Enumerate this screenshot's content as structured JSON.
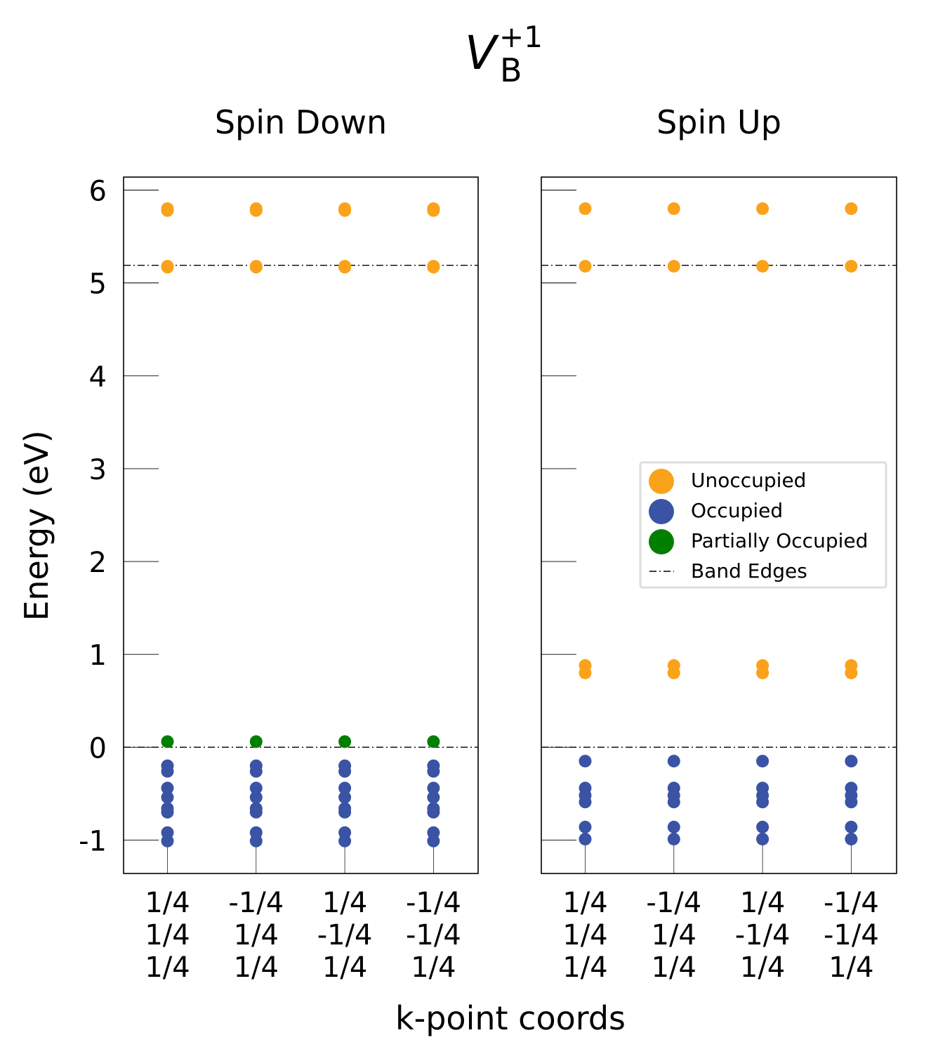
{
  "title": {
    "main": "V",
    "superscript": "+1",
    "subscript": "B"
  },
  "xlabel": "k-point coords",
  "ylabel": "Energy (eV)",
  "colors": {
    "unoccupied": "#faa21a",
    "occupied": "#3a53a4",
    "partially_occupied": "#007f00",
    "band_edges": "#000000"
  },
  "chart_data": [
    {
      "type": "scatter",
      "title": "Spin Down",
      "ylabel": "Energy (eV)",
      "ylim": [
        -1.36,
        6.14
      ],
      "yticks": [
        -1,
        0,
        1,
        2,
        3,
        4,
        5,
        6
      ],
      "ytick_labels": [
        "-1",
        "0",
        "1",
        "2",
        "3",
        "4",
        "5",
        "6"
      ],
      "categories": [
        [
          "1/4",
          "1/4",
          "1/4"
        ],
        [
          "-1/4",
          "1/4",
          "1/4"
        ],
        [
          "1/4",
          "-1/4",
          "1/4"
        ],
        [
          "-1/4",
          "-1/4",
          "1/4"
        ]
      ],
      "band_edges": [
        0.0,
        5.19
      ],
      "series": [
        {
          "name": "Unoccupied",
          "color": "#faa21a",
          "levels": [
            5.8,
            5.78,
            5.18,
            5.17
          ]
        },
        {
          "name": "Occupied",
          "color": "#3a53a4",
          "levels": [
            -0.2,
            -0.26,
            -0.44,
            -0.54,
            -0.66,
            -0.7,
            -0.92,
            -1.01
          ]
        },
        {
          "name": "Partially Occupied",
          "color": "#007f00",
          "levels": [
            0.06
          ]
        }
      ]
    },
    {
      "type": "scatter",
      "title": "Spin Up",
      "ylim": [
        -1.36,
        6.14
      ],
      "yticks": [
        -1,
        0,
        1,
        2,
        3,
        4,
        5,
        6
      ],
      "categories": [
        [
          "1/4",
          "1/4",
          "1/4"
        ],
        [
          "-1/4",
          "1/4",
          "1/4"
        ],
        [
          "1/4",
          "-1/4",
          "1/4"
        ],
        [
          "-1/4",
          "-1/4",
          "1/4"
        ]
      ],
      "band_edges": [
        0.0,
        5.19
      ],
      "series": [
        {
          "name": "Unoccupied",
          "color": "#faa21a",
          "levels": [
            5.8,
            5.18,
            0.88,
            0.8
          ]
        },
        {
          "name": "Occupied",
          "color": "#3a53a4",
          "levels": [
            -0.15,
            -0.44,
            -0.52,
            -0.59,
            -0.86,
            -0.99
          ]
        }
      ]
    }
  ],
  "legend": {
    "placement": "right-center",
    "entries": [
      {
        "label": "Unoccupied",
        "color": "#faa21a",
        "marker": "circle"
      },
      {
        "label": "Occupied",
        "color": "#3a53a4",
        "marker": "circle"
      },
      {
        "label": "Partially Occupied",
        "color": "#007f00",
        "marker": "circle"
      },
      {
        "label": "Band Edges",
        "color": "#000000",
        "marker": "dashdot"
      }
    ]
  }
}
